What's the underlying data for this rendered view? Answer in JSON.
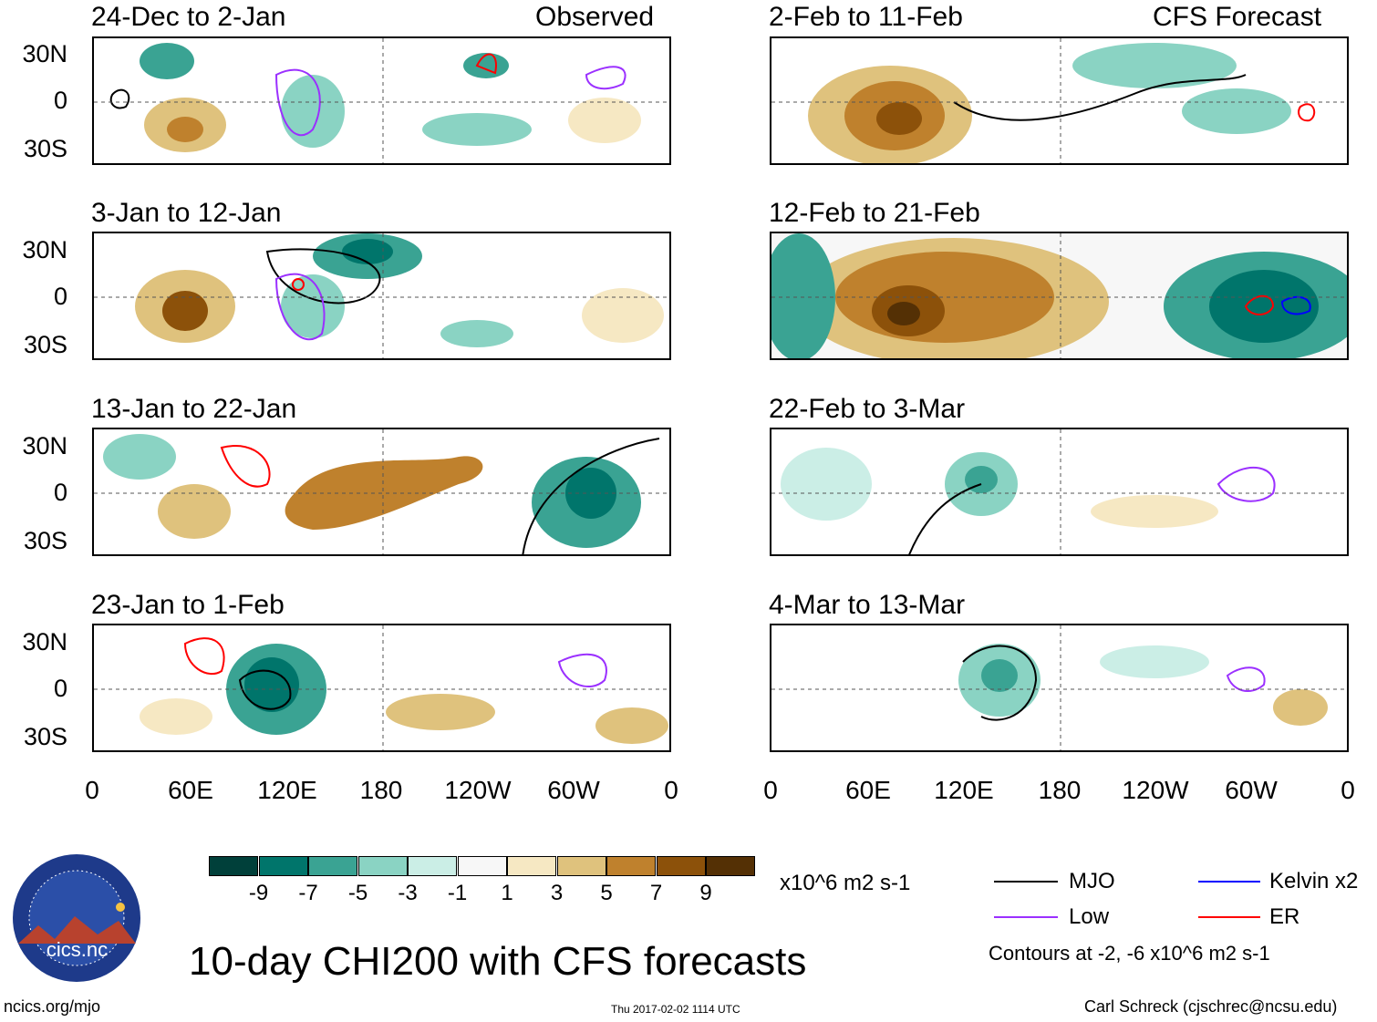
{
  "panels": [
    {
      "title": "24-Dec to 2-Jan",
      "tag": "Observed"
    },
    {
      "title": "3-Jan to 12-Jan",
      "tag": ""
    },
    {
      "title": "13-Jan to 22-Jan",
      "tag": ""
    },
    {
      "title": "23-Jan to 1-Feb",
      "tag": ""
    },
    {
      "title": "2-Feb to 11-Feb",
      "tag": "CFS Forecast"
    },
    {
      "title": "12-Feb to 21-Feb",
      "tag": ""
    },
    {
      "title": "22-Feb to 3-Mar",
      "tag": ""
    },
    {
      "title": "4-Mar to 13-Mar",
      "tag": ""
    }
  ],
  "lat_labels": [
    "30N",
    "0",
    "30S"
  ],
  "lon_labels": [
    "0",
    "60E",
    "120E",
    "180",
    "120W",
    "60W",
    "0"
  ],
  "colorbar": {
    "colors": [
      "#00403a",
      "#00756b",
      "#3aa393",
      "#8ad3c3",
      "#cbeee6",
      "#f7f7f7",
      "#f6e8c3",
      "#dfc27d",
      "#bf812d",
      "#8c510a",
      "#543005"
    ],
    "labels": [
      "-9",
      "-7",
      "-5",
      "-3",
      "-1",
      "1",
      "3",
      "5",
      "7",
      "9"
    ],
    "units": "x10^6 m2 s-1"
  },
  "legend": {
    "mjo": "MJO",
    "low": "Low",
    "kelvin": "Kelvin x2",
    "er": "ER",
    "contours": "Contours at -2, -6 x10^6 m2 s-1",
    "colors": {
      "mjo": "#000000",
      "low": "#9b30ff",
      "kelvin": "#0000ff",
      "er": "#ff0000"
    }
  },
  "logo": {
    "text": "cics.nc",
    "ring": "Cooperative Institute for Climate and Satellites"
  },
  "main_title": "10-day CHI200 with CFS forecasts",
  "footer": {
    "left": "ncics.org/mjo",
    "center": "Thu 2017-02-02 1114 UTC",
    "right": "Carl Schreck (cjschrec@ncsu.edu)"
  }
}
